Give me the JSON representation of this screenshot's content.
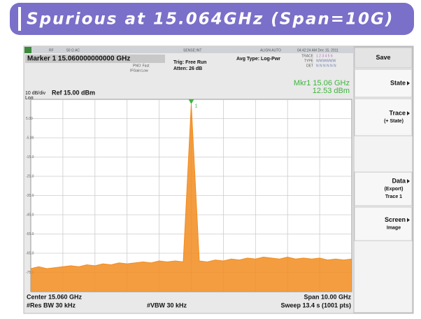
{
  "banner": {
    "title": "Spurious at 15.064GHz (Span=10G)"
  },
  "status": {
    "rf": "RF",
    "input": "50 Ω  AC",
    "sense": "SENSE:INT",
    "align": "ALIGN AUTO",
    "clock": "04:42:24 AM Dec 15, 2011"
  },
  "marker_bar": {
    "label": "Marker 1  15.060000000000 GHz",
    "pno": "PNO: Fast",
    "ifgain": "IFGain:Low",
    "trig": "Trig: Free Run",
    "atten": "Atten: 26 dB",
    "avg": "Avg Type: Log-Pwr",
    "trace": "TRACE",
    "trace_nums": "1 2 3 4 5 6",
    "type": "TYPE",
    "type_val": "WWWWWW",
    "det": "DET",
    "det_val": "N N N N N N"
  },
  "chart_data": {
    "type": "line",
    "scale": "10 dB/div",
    "ref": "Ref 15.00 dBm",
    "log": "Log",
    "marker": {
      "id": "1",
      "readout_x": "Mkr1 15.06 GHz",
      "readout_y": "12.53 dBm"
    },
    "x": [
      10.06,
      10.31,
      10.56,
      10.81,
      11.06,
      11.31,
      11.56,
      11.81,
      12.06,
      12.31,
      12.56,
      12.81,
      13.06,
      13.31,
      13.56,
      13.81,
      14.06,
      14.31,
      14.56,
      14.81,
      15.06,
      15.31,
      15.56,
      15.81,
      16.06,
      16.31,
      16.56,
      16.81,
      17.06,
      17.31,
      17.56,
      17.81,
      18.06,
      18.31,
      18.56,
      18.81,
      19.06,
      19.31,
      19.56,
      19.81,
      20.06
    ],
    "values": [
      -73,
      -72,
      -73,
      -72.5,
      -72,
      -71.5,
      -72,
      -71,
      -71.5,
      -70.5,
      -71,
      -70,
      -70.5,
      -70,
      -69.5,
      -70,
      -69,
      -69.5,
      -69,
      -69.5,
      12.53,
      -69,
      -69.5,
      -68.5,
      -69,
      -68,
      -68.5,
      -67.5,
      -68,
      -67,
      -67.5,
      -68,
      -67,
      -68,
      -67.5,
      -68,
      -67.5,
      -68.5,
      -68,
      -68.5,
      -68
    ],
    "color": "#f28c1e",
    "xlim": [
      10.06,
      20.06
    ],
    "ylim": [
      -85,
      15
    ],
    "yticks": [
      {
        "value": 5,
        "label": "5.00"
      },
      {
        "value": -5,
        "label": "-5.00"
      },
      {
        "value": -15,
        "label": "-15.0"
      },
      {
        "value": -25,
        "label": "-25.0"
      },
      {
        "value": -35,
        "label": "-35.0"
      },
      {
        "value": -45,
        "label": "-45.0"
      },
      {
        "value": -55,
        "label": "-55.0"
      },
      {
        "value": -65,
        "label": "-65.0"
      },
      {
        "value": -75,
        "label": "-75.0"
      }
    ],
    "grid": true,
    "footer": {
      "center": "Center 15.060 GHz",
      "span": "Span 10.00 GHz",
      "rbw": "#Res BW 30 kHz",
      "vbw": "#VBW 30 kHz",
      "sweep": "Sweep  13.4 s (1001 pts)"
    }
  },
  "softkeys": [
    {
      "lines": [
        "Save"
      ]
    },
    {
      "lines": [
        "State"
      ]
    },
    {
      "lines": [
        "Trace",
        "(+ State)"
      ]
    },
    {
      "lines": [
        "Data",
        "(Export)",
        "Trace 1"
      ]
    },
    {
      "lines": [
        "Screen",
        "Image"
      ]
    }
  ]
}
